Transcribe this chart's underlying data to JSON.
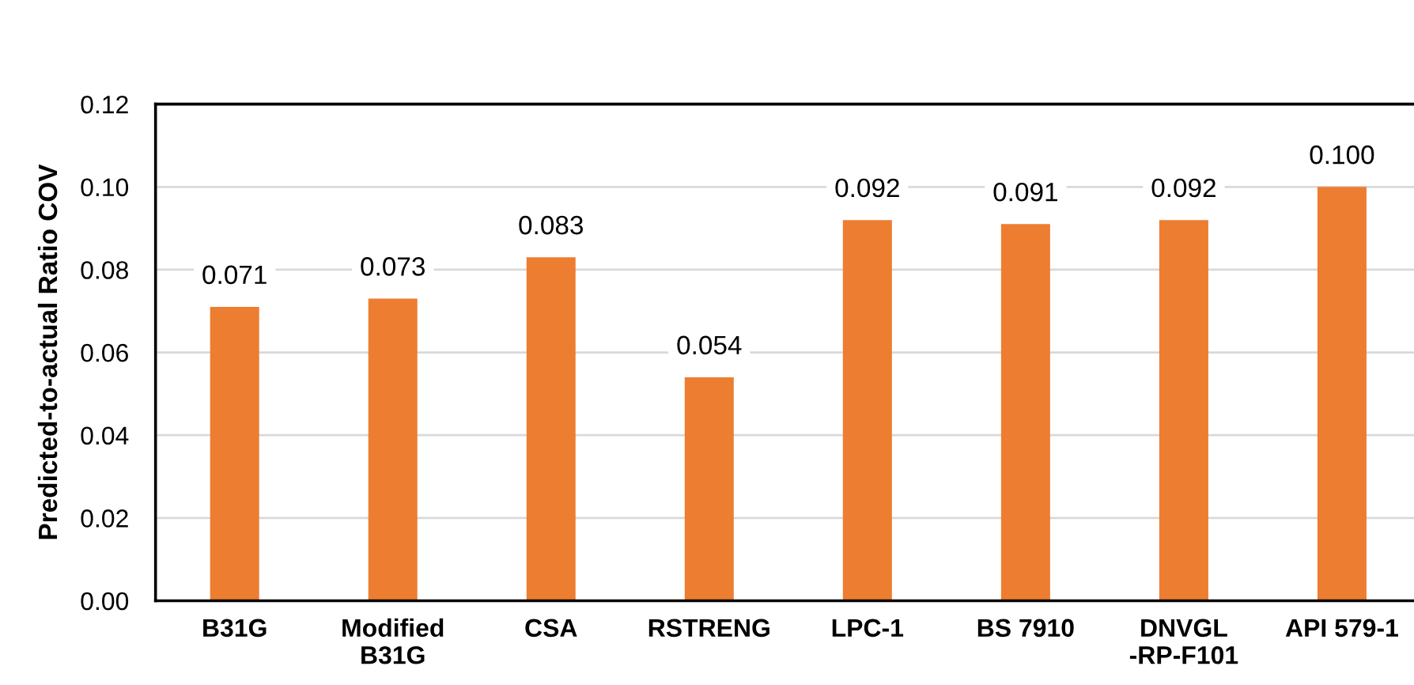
{
  "chart_data": {
    "type": "bar",
    "ylabel": "Predicted-to-actual Ratio COV",
    "categories": [
      "B31G",
      "Modified\nB31G",
      "CSA",
      "RSTRENG",
      "LPC-1",
      "BS 7910",
      "DNVGL\n-RP-F101",
      "API 579-1"
    ],
    "values": [
      0.071,
      0.073,
      0.083,
      0.054,
      0.092,
      0.091,
      0.092,
      0.1
    ],
    "value_labels": [
      "0.071",
      "0.073",
      "0.083",
      "0.054",
      "0.092",
      "0.091",
      "0.092",
      "0.100"
    ],
    "color": "#ed7d31",
    "ylim": [
      0,
      0.12
    ],
    "yticks": [
      {
        "value": 0,
        "label": "0.00"
      },
      {
        "value": 0.02,
        "label": "0.02"
      },
      {
        "value": 0.04,
        "label": "0.04"
      },
      {
        "value": 0.06,
        "label": "0.06"
      },
      {
        "value": 0.08,
        "label": "0.08"
      },
      {
        "value": 0.1,
        "label": "0.10"
      },
      {
        "value": 0.12,
        "label": "0.12"
      }
    ],
    "grid": "y"
  }
}
